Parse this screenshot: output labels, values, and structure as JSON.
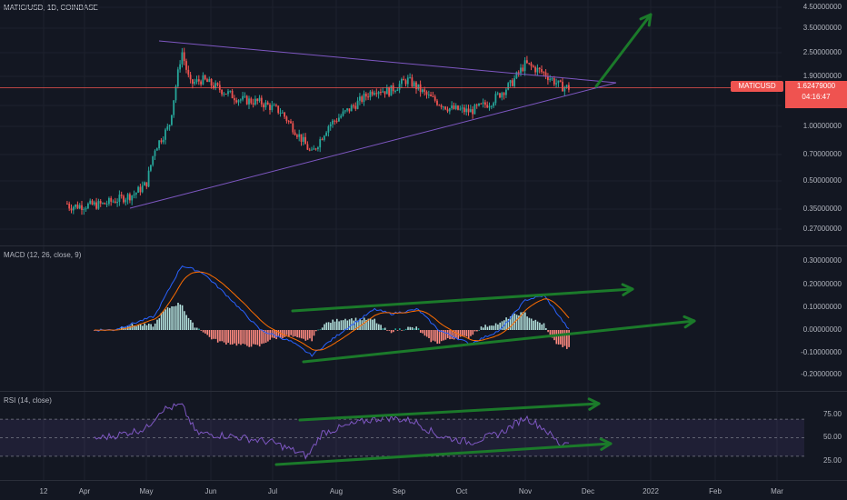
{
  "header": {
    "title": "MATIC/USD, 1D, COINBASE"
  },
  "price_axis": [
    "4.50000000",
    "3.50000000",
    "2.50000000",
    "1.90000000",
    "1.30000000",
    "1.00000000",
    "0.70000000",
    "0.50000000",
    "0.35000000",
    "0.27000000"
  ],
  "price_tag": {
    "symbol": "MATICUSD",
    "value": "1.62479000",
    "countdown": "04:16:47"
  },
  "macd": {
    "label": "MACD (12, 26, close, 9)",
    "axis": [
      "0.30000000",
      "0.20000000",
      "0.10000000",
      "0.00000000",
      "-0.10000000",
      "-0.20000000"
    ]
  },
  "rsi": {
    "label": "RSI (14, close)",
    "axis": [
      "75.00",
      "50.00",
      "25.00"
    ]
  },
  "time_axis": [
    "12",
    "Apr",
    "May",
    "Jun",
    "Jul",
    "Aug",
    "Sep",
    "Oct",
    "Nov",
    "Dec",
    "2022",
    "Feb",
    "Mar"
  ],
  "colors": {
    "up": "#26a69a",
    "down": "#ef5350",
    "trend": "#7e57c2",
    "arrow": "#1b7a2a",
    "macd": "#2962ff",
    "signal": "#ff6d00",
    "rsi": "#7e57c2",
    "bg": "#131722"
  },
  "chart_data": {
    "type": "candlestick",
    "symbol": "MATIC/USD",
    "interval": "1D",
    "exchange": "COINBASE",
    "last_price": 1.62479,
    "scale": "log",
    "price_path": [
      [
        "Mar 12",
        0.55
      ],
      [
        "Mar 25",
        0.36
      ],
      [
        "Apr 10",
        0.37
      ],
      [
        "Apr 25",
        0.42
      ],
      [
        "May 1",
        0.48
      ],
      [
        "May 5",
        0.75
      ],
      [
        "May 12",
        1.0
      ],
      [
        "May 18",
        2.6
      ],
      [
        "May 22",
        1.7
      ],
      [
        "May 28",
        1.8
      ],
      [
        "Jun 5",
        1.6
      ],
      [
        "Jun 15",
        1.4
      ],
      [
        "Jun 25",
        1.35
      ],
      [
        "Jul 5",
        1.2
      ],
      [
        "Jul 15",
        0.85
      ],
      [
        "Jul 20",
        0.7
      ],
      [
        "Jul 28",
        1.0
      ],
      [
        "Aug 10",
        1.3
      ],
      [
        "Aug 20",
        1.6
      ],
      [
        "Aug 27",
        1.55
      ],
      [
        "Sep 5",
        1.8
      ],
      [
        "Sep 15",
        1.45
      ],
      [
        "Sep 25",
        1.25
      ],
      [
        "Oct 5",
        1.2
      ],
      [
        "Oct 15",
        1.35
      ],
      [
        "Oct 25",
        1.7
      ],
      [
        "Nov 1",
        2.2
      ],
      [
        "Nov 10",
        1.95
      ],
      [
        "Nov 18",
        1.65
      ],
      [
        "Nov 22",
        1.62
      ]
    ],
    "macd_path": [
      [
        "Mar 12",
        0.0
      ],
      [
        "Apr 15",
        0.0
      ],
      [
        "May 5",
        0.06
      ],
      [
        "May 18",
        0.28
      ],
      [
        "May 28",
        0.25
      ],
      [
        "Jun 10",
        0.14
      ],
      [
        "Jun 25",
        0.0
      ],
      [
        "Jul 10",
        -0.05
      ],
      [
        "Jul 20",
        -0.11
      ],
      [
        "Aug 5",
        0.0
      ],
      [
        "Aug 20",
        0.09
      ],
      [
        "Aug 28",
        0.07
      ],
      [
        "Sep 10",
        0.09
      ],
      [
        "Sep 20",
        0.0
      ],
      [
        "Oct 5",
        -0.06
      ],
      [
        "Oct 20",
        0.0
      ],
      [
        "Nov 1",
        0.13
      ],
      [
        "Nov 10",
        0.15
      ],
      [
        "Nov 22",
        0.0
      ]
    ],
    "rsi_path": [
      [
        "Mar 12",
        28
      ],
      [
        "Mar 25",
        45
      ],
      [
        "Apr 15",
        52
      ],
      [
        "May 1",
        60
      ],
      [
        "May 8",
        80
      ],
      [
        "May 18",
        85
      ],
      [
        "May 25",
        55
      ],
      [
        "Jun 10",
        52
      ],
      [
        "Jul 1",
        45
      ],
      [
        "Jul 18",
        30
      ],
      [
        "Jul 25",
        55
      ],
      [
        "Aug 15",
        68
      ],
      [
        "Aug 25",
        72
      ],
      [
        "Sep 8",
        68
      ],
      [
        "Sep 20",
        52
      ],
      [
        "Oct 5",
        45
      ],
      [
        "Oct 20",
        55
      ],
      [
        "Nov 1",
        72
      ],
      [
        "Nov 10",
        60
      ],
      [
        "Nov 18",
        42
      ],
      [
        "Nov 22",
        48
      ]
    ]
  }
}
